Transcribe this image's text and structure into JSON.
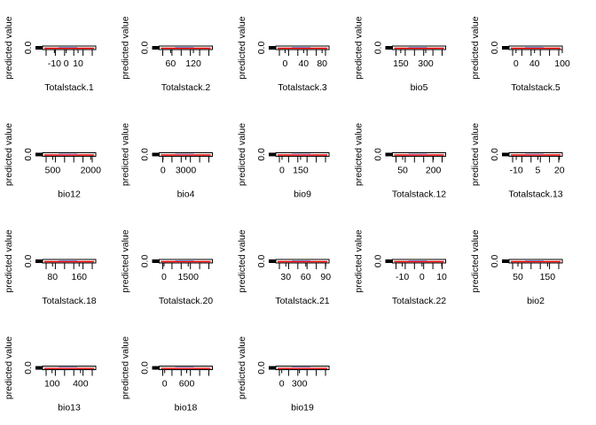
{
  "figure": {
    "ylabel": "predicted value",
    "ytick_label": "0.0",
    "colors": {
      "fitted_line": "#ff0000",
      "secondary_line": "#8888cc",
      "frame": "#000000",
      "background": "#ffffff"
    }
  },
  "chart_data": [
    {
      "type": "line",
      "xlabel": "Totalstack.1",
      "ylabel": "predicted value",
      "xticks": [
        -10,
        0,
        10
      ],
      "xrange": [
        -20,
        25
      ],
      "ylim": [
        0,
        0.05
      ],
      "yticks": [
        0.0
      ]
    },
    {
      "type": "line",
      "xlabel": "Totalstack.2",
      "ylabel": "predicted value",
      "xticks": [
        60,
        120
      ],
      "xrange": [
        30,
        170
      ],
      "ylim": [
        0,
        0.05
      ],
      "yticks": [
        0.0
      ]
    },
    {
      "type": "line",
      "xlabel": "Totalstack.3",
      "ylabel": "predicted value",
      "xticks": [
        0,
        40,
        80
      ],
      "xrange": [
        -20,
        95
      ],
      "ylim": [
        0,
        0.05
      ],
      "yticks": [
        0.0
      ]
    },
    {
      "type": "line",
      "xlabel": "bio5",
      "ylabel": "predicted value",
      "xticks": [
        150,
        300
      ],
      "xrange": [
        100,
        420
      ],
      "ylim": [
        0,
        0.05
      ],
      "yticks": [
        0.0
      ]
    },
    {
      "type": "line",
      "xlabel": "Totalstack.5",
      "ylabel": "predicted value",
      "xticks": [
        0,
        40,
        100
      ],
      "xrange": [
        -15,
        100
      ],
      "ylim": [
        0,
        0.05
      ],
      "yticks": [
        0.0
      ]
    },
    {
      "type": "line",
      "xlabel": "bio12",
      "ylabel": "predicted value",
      "xticks": [
        500,
        2000
      ],
      "xrange": [
        100,
        2200
      ],
      "ylim": [
        0,
        0.05
      ],
      "yticks": [
        0.0
      ]
    },
    {
      "type": "line",
      "xlabel": "bio4",
      "ylabel": "predicted value",
      "xticks": [
        0,
        3000
      ],
      "xrange": [
        -500,
        6500
      ],
      "ylim": [
        0,
        0.05
      ],
      "yticks": [
        0.0
      ]
    },
    {
      "type": "line",
      "xlabel": "bio9",
      "ylabel": "predicted value",
      "xticks": [
        0,
        150
      ],
      "xrange": [
        -50,
        380
      ],
      "ylim": [
        0,
        0.05
      ],
      "yticks": [
        0.0
      ]
    },
    {
      "type": "line",
      "xlabel": "Totalstack.12",
      "ylabel": "predicted value",
      "xticks": [
        50,
        200
      ],
      "xrange": [
        0,
        260
      ],
      "ylim": [
        0,
        0.05
      ],
      "yticks": [
        0.0
      ]
    },
    {
      "type": "line",
      "xlabel": "Totalstack.13",
      "ylabel": "predicted value",
      "xticks": [
        -10,
        5,
        20
      ],
      "xrange": [
        -15,
        22
      ],
      "ylim": [
        0,
        0.05
      ],
      "yticks": [
        0.0
      ]
    },
    {
      "type": "line",
      "xlabel": "Totalstack.18",
      "ylabel": "predicted value",
      "xticks": [
        80,
        160
      ],
      "xrange": [
        50,
        210
      ],
      "ylim": [
        0,
        0.05
      ],
      "yticks": [
        0.0
      ]
    },
    {
      "type": "line",
      "xlabel": "Totalstack.20",
      "ylabel": "predicted value",
      "xticks": [
        0,
        1500
      ],
      "xrange": [
        -300,
        3000
      ],
      "ylim": [
        0,
        0.05
      ],
      "yticks": [
        0.0
      ]
    },
    {
      "type": "line",
      "xlabel": "Totalstack.21",
      "ylabel": "predicted value",
      "xticks": [
        30,
        60,
        90
      ],
      "xrange": [
        15,
        95
      ],
      "ylim": [
        0,
        0.05
      ],
      "yticks": [
        0.0
      ]
    },
    {
      "type": "line",
      "xlabel": "Totalstack.22",
      "ylabel": "predicted value",
      "xticks": [
        -10,
        0,
        10
      ],
      "xrange": [
        -15,
        12
      ],
      "ylim": [
        0,
        0.05
      ],
      "yticks": [
        0.0
      ]
    },
    {
      "type": "line",
      "xlabel": "bio2",
      "ylabel": "predicted value",
      "xticks": [
        50,
        150
      ],
      "xrange": [
        20,
        200
      ],
      "ylim": [
        0,
        0.05
      ],
      "yticks": [
        0.0
      ]
    },
    {
      "type": "line",
      "xlabel": "bio13",
      "ylabel": "predicted value",
      "xticks": [
        100,
        400
      ],
      "xrange": [
        0,
        560
      ],
      "ylim": [
        0,
        0.05
      ],
      "yticks": [
        0.0
      ]
    },
    {
      "type": "line",
      "xlabel": "bio18",
      "ylabel": "predicted value",
      "xticks": [
        0,
        600
      ],
      "xrange": [
        -150,
        1300
      ],
      "ylim": [
        0,
        0.05
      ],
      "yticks": [
        0.0
      ]
    },
    {
      "type": "line",
      "xlabel": "bio19",
      "ylabel": "predicted value",
      "xticks": [
        0,
        300
      ],
      "xrange": [
        -100,
        800
      ],
      "ylim": [
        0,
        0.05
      ],
      "yticks": [
        0.0
      ]
    }
  ]
}
